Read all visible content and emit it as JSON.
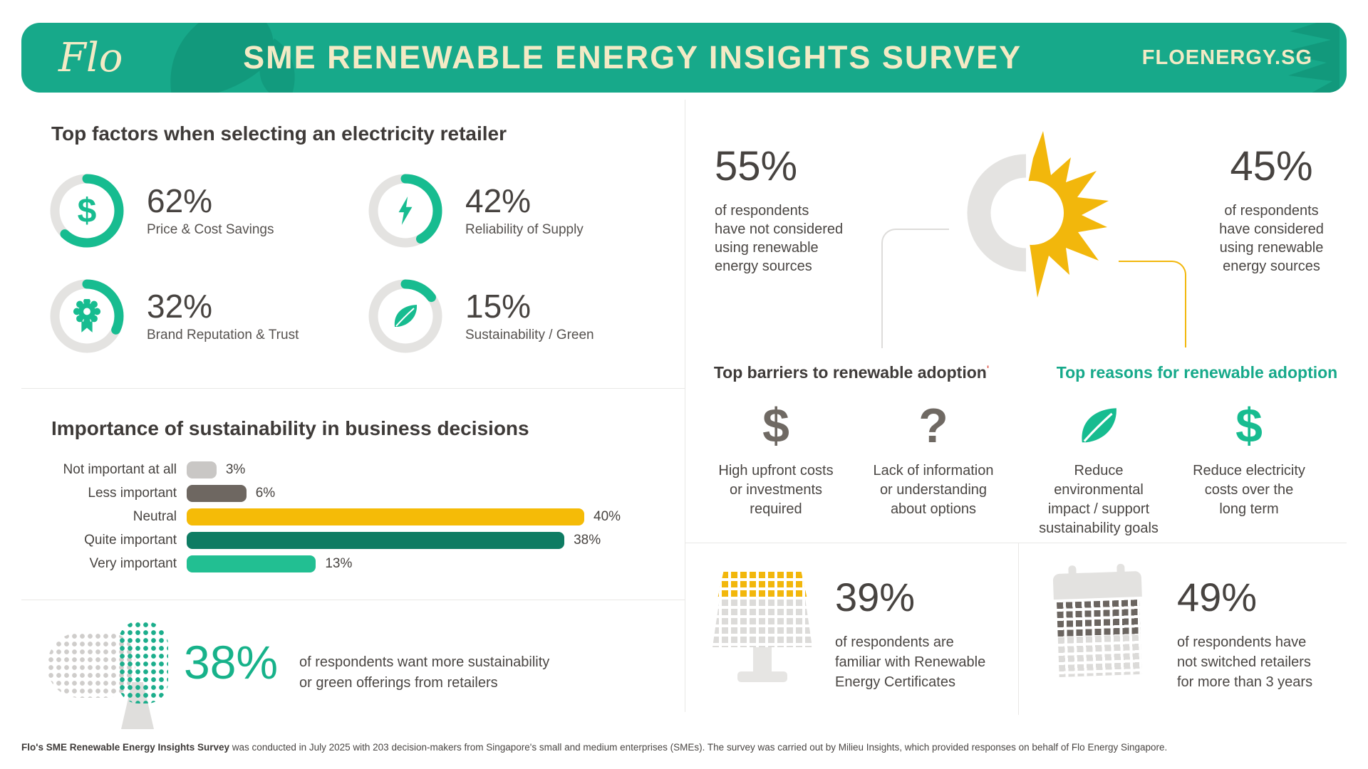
{
  "header": {
    "logo_text": "Flo",
    "title": "SME RENEWABLE ENERGY INSIGHTS SURVEY",
    "website": "FLOENERGY.SG"
  },
  "chart_data": [
    {
      "type": "donut",
      "title": "Top factors when selecting an electricity retailer",
      "items": [
        {
          "label": "Price & Cost Savings",
          "pct": 62,
          "display": "62%",
          "icon": "dollar-icon"
        },
        {
          "label": "Reliability of Supply",
          "pct": 42,
          "display": "42%",
          "icon": "bolt-icon"
        },
        {
          "label": "Brand Reputation & Trust",
          "pct": 32,
          "display": "32%",
          "icon": "badge-icon"
        },
        {
          "label": "Sustainability / Green",
          "pct": 15,
          "display": "15%",
          "icon": "leaf-icon"
        }
      ],
      "arc_color": "#17bc90",
      "track_color": "#e4e3e1"
    },
    {
      "type": "bar",
      "orientation": "horizontal",
      "title": "Importance of sustainability in business decisions",
      "categories": [
        "Not important at all",
        "Less important",
        "Neutral",
        "Quite important",
        "Very important"
      ],
      "values": [
        3,
        6,
        40,
        38,
        13
      ],
      "display_values": [
        "3%",
        "6%",
        "40%",
        "38%",
        "13%"
      ],
      "bar_colors": [
        "#c9c7c5",
        "#6e6761",
        "#f5bb07",
        "#0e7c63",
        "#22bf92"
      ],
      "xlim": [
        0,
        40
      ],
      "grid": false
    },
    {
      "type": "pie",
      "title": "Consideration of renewable energy sources",
      "slices": [
        {
          "label": "have not considered using renewable energy sources",
          "pct": 55,
          "display": "55%",
          "color": "#e4e3e1"
        },
        {
          "label": "have considered using renewable energy sources",
          "pct": 45,
          "display": "45%",
          "color": "#f2b70c"
        }
      ]
    }
  ],
  "considered": {
    "left_lines": [
      "of respondents",
      "have not considered",
      "using renewable",
      "energy sources"
    ],
    "right_lines": [
      "of respondents",
      "have considered",
      "using renewable",
      "energy sources"
    ]
  },
  "barriers": {
    "title": "Top barriers to renewable adoption",
    "title_mark": "'",
    "items": [
      {
        "icon": "dollar-icon",
        "lines": [
          "High upfront costs",
          "or investments",
          "required"
        ]
      },
      {
        "icon": "question-icon",
        "lines": [
          "Lack of information",
          "or understanding",
          "about options"
        ]
      }
    ]
  },
  "reasons": {
    "title": "Top reasons for renewable adoption",
    "items": [
      {
        "icon": "leaf-icon",
        "lines": [
          "Reduce",
          "environmental",
          "impact / support",
          "sustainability goals"
        ]
      },
      {
        "icon": "dollar-icon",
        "lines": [
          "Reduce electricity",
          "costs over the",
          "long term"
        ]
      }
    ]
  },
  "want_more": {
    "value": "38%",
    "lines": [
      "of respondents want more sustainability",
      "or green offerings from retailers"
    ]
  },
  "rec_familiar": {
    "value": "39%",
    "lines": [
      "of respondents are",
      "familiar with Renewable",
      "Energy Certificates"
    ]
  },
  "not_switched": {
    "value": "49%",
    "lines": [
      "of respondents have",
      "not switched retailers",
      "for more than 3 years"
    ]
  },
  "footer": {
    "bold": "Flo's SME Renewable Energy Insights Survey",
    "rest": " was conducted in July 2025 with 203 decision-makers from Singapore's small and medium enterprises (SMEs). The survey was carried out by Milieu Insights, which provided responses on behalf of Flo Energy Singapore."
  },
  "colors": {
    "brand_green": "#17a98a",
    "accent_green": "#17bc90",
    "leaf_dark_green": "#12997c",
    "cream": "#f3eac5",
    "heading_text": "#3e3a38",
    "body_text": "#4a4643",
    "number_text": "#474340",
    "sun_yellow": "#f2b70c",
    "icon_gray": "#6f6963",
    "track_gray": "#e4e3e1",
    "divider": "#e9e8e6"
  }
}
